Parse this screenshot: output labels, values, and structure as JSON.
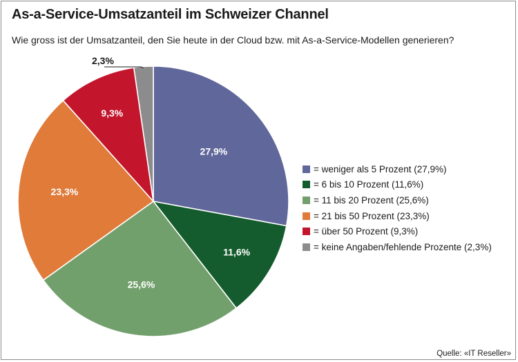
{
  "title": "As-a-Service-Umsatzanteil im Schweizer Channel",
  "subtitle": "Wie gross ist der Umsatzanteil, den Sie heute in der Cloud bzw. mit As-a-Service-Modellen generieren?",
  "source": "Quelle: «IT Reseller»",
  "chart_data": {
    "type": "pie",
    "title": "As-a-Service-Umsatzanteil im Schweizer Channel",
    "start": "12 o'clock",
    "direction": "clockwise",
    "legend_position": "right",
    "slices": [
      {
        "label": "weniger als 5 Prozent",
        "value": 27.9,
        "data_label": "27,9%",
        "legend": "= weniger als 5 Prozent (27,9%)",
        "color": "#60679a",
        "label_color": "#ffffff"
      },
      {
        "label": "6 bis 10 Prozent",
        "value": 11.6,
        "data_label": "11,6%",
        "legend": "= 6 bis 10 Prozent (11,6%)",
        "color": "#145c2d",
        "label_color": "#ffffff"
      },
      {
        "label": "11 bis 20 Prozent",
        "value": 25.6,
        "data_label": "25,6%",
        "legend": "= 11 bis 20 Prozent (25,6%)",
        "color": "#72a06c",
        "label_color": "#ffffff"
      },
      {
        "label": "21 bis 50 Prozent",
        "value": 23.3,
        "data_label": "23,3%",
        "legend": "= 21 bis 50 Prozent (23,3%)",
        "color": "#e07b3a",
        "label_color": "#ffffff"
      },
      {
        "label": "über 50 Prozent",
        "value": 9.3,
        "data_label": "9,3%",
        "legend": "= über 50 Prozent (9,3%)",
        "color": "#c3162c",
        "label_color": "#ffffff"
      },
      {
        "label": "keine Angaben/fehlende Prozente",
        "value": 2.3,
        "data_label": "2,3%",
        "legend": "= keine Angaben/fehlende Prozente (2,3%)",
        "color": "#8c8c8c",
        "label_color": "#1a1a1a"
      }
    ]
  }
}
